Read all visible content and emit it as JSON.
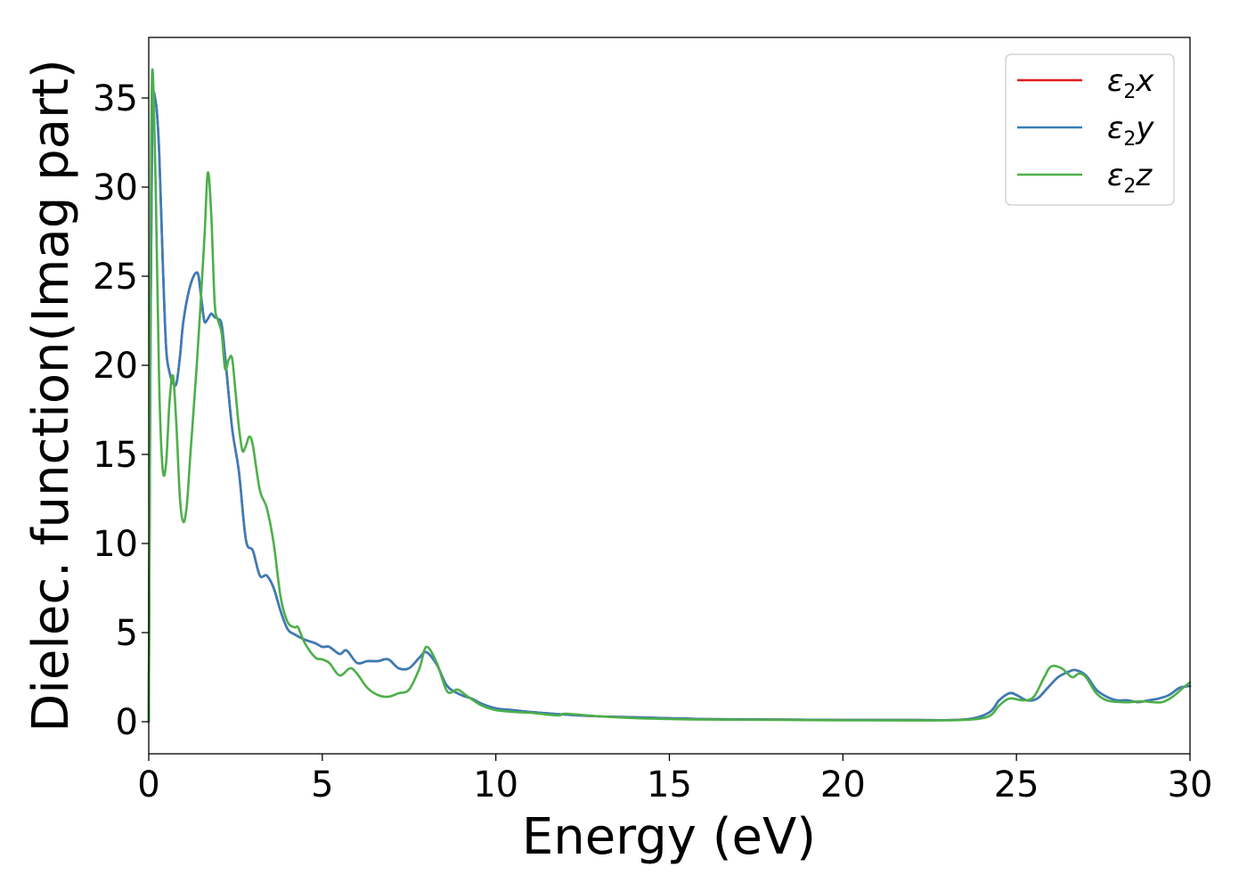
{
  "chart_data": {
    "type": "line",
    "title": "",
    "xlabel": "Energy (eV)",
    "ylabel": "Dielec. function(Imag part)",
    "xlim": [
      0,
      30
    ],
    "ylim": [
      -1.8,
      38.4
    ],
    "xticks": [
      "0",
      "5",
      "10",
      "15",
      "20",
      "25",
      "30"
    ],
    "yticks": [
      "0",
      "5",
      "10",
      "15",
      "20",
      "25",
      "30",
      "35"
    ],
    "grid": false,
    "legend_position": "top-right",
    "series": [
      {
        "name": "ε2x",
        "legend": {
          "symbol": "ε",
          "sub": "2",
          "axis": "x"
        },
        "color": "#e41a1c",
        "x": [
          0,
          0.05,
          0.1,
          0.2,
          0.3,
          0.4,
          0.5,
          0.6,
          0.7,
          0.8,
          0.9,
          1.0,
          1.2,
          1.4,
          1.5,
          1.6,
          1.7,
          1.8,
          1.9,
          2.0,
          2.1,
          2.2,
          2.4,
          2.6,
          2.8,
          3.0,
          3.2,
          3.4,
          3.6,
          3.8,
          4.0,
          4.2,
          4.5,
          4.8,
          5.0,
          5.2,
          5.5,
          5.7,
          6.0,
          6.3,
          6.6,
          6.9,
          7.2,
          7.5,
          7.8,
          8.0,
          8.3,
          8.6,
          9.0,
          9.3,
          9.6,
          10.0,
          10.5,
          11.0,
          12.0,
          13.0,
          14.0,
          15.0,
          16.0,
          18.0,
          20.0,
          22.0,
          23.5,
          24.2,
          24.5,
          24.8,
          25.0,
          25.3,
          25.6,
          25.9,
          26.2,
          26.5,
          26.7,
          27.0,
          27.3,
          27.6,
          27.9,
          28.2,
          28.5,
          28.8,
          29.1,
          29.4,
          29.7,
          30.0
        ],
        "y": [
          0,
          22,
          34,
          34.8,
          32,
          26,
          21,
          19.6,
          19.0,
          19.0,
          20.5,
          22.5,
          24.5,
          25.2,
          24.0,
          22.5,
          22.6,
          22.9,
          22.7,
          22.6,
          22.3,
          20.5,
          16.5,
          14.0,
          10.2,
          9.6,
          8.2,
          8.2,
          7.5,
          6.2,
          5.2,
          4.9,
          4.6,
          4.4,
          4.2,
          4.2,
          3.8,
          4.0,
          3.3,
          3.4,
          3.4,
          3.5,
          3.0,
          3.0,
          3.6,
          3.9,
          3.2,
          2.0,
          1.5,
          1.3,
          1.0,
          0.75,
          0.65,
          0.55,
          0.4,
          0.3,
          0.25,
          0.2,
          0.15,
          0.12,
          0.1,
          0.1,
          0.12,
          0.5,
          1.2,
          1.6,
          1.5,
          1.2,
          1.3,
          1.9,
          2.5,
          2.8,
          2.9,
          2.6,
          1.8,
          1.4,
          1.2,
          1.2,
          1.1,
          1.2,
          1.3,
          1.5,
          1.9,
          2.0
        ]
      },
      {
        "name": "ε2y",
        "legend": {
          "symbol": "ε",
          "sub": "2",
          "axis": "y"
        },
        "color": "#377eb8",
        "x": [
          0,
          0.05,
          0.1,
          0.2,
          0.3,
          0.4,
          0.5,
          0.6,
          0.7,
          0.8,
          0.9,
          1.0,
          1.2,
          1.4,
          1.5,
          1.6,
          1.7,
          1.8,
          1.9,
          2.0,
          2.1,
          2.2,
          2.4,
          2.6,
          2.8,
          3.0,
          3.2,
          3.4,
          3.6,
          3.8,
          4.0,
          4.2,
          4.5,
          4.8,
          5.0,
          5.2,
          5.5,
          5.7,
          6.0,
          6.3,
          6.6,
          6.9,
          7.2,
          7.5,
          7.8,
          8.0,
          8.3,
          8.6,
          9.0,
          9.3,
          9.6,
          10.0,
          10.5,
          11.0,
          12.0,
          13.0,
          14.0,
          15.0,
          16.0,
          18.0,
          20.0,
          22.0,
          23.5,
          24.2,
          24.5,
          24.8,
          25.0,
          25.3,
          25.6,
          25.9,
          26.2,
          26.5,
          26.7,
          27.0,
          27.3,
          27.6,
          27.9,
          28.2,
          28.5,
          28.8,
          29.1,
          29.4,
          29.7,
          30.0
        ],
        "y": [
          0,
          22,
          34,
          34.8,
          32,
          26,
          21,
          19.6,
          19.0,
          19.0,
          20.5,
          22.5,
          24.5,
          25.2,
          24.0,
          22.5,
          22.6,
          22.9,
          22.7,
          22.6,
          22.3,
          20.5,
          16.5,
          14.0,
          10.2,
          9.6,
          8.2,
          8.2,
          7.5,
          6.2,
          5.2,
          4.9,
          4.6,
          4.4,
          4.2,
          4.2,
          3.8,
          4.0,
          3.3,
          3.4,
          3.4,
          3.5,
          3.0,
          3.0,
          3.6,
          3.9,
          3.2,
          2.0,
          1.5,
          1.3,
          1.0,
          0.75,
          0.65,
          0.55,
          0.4,
          0.3,
          0.25,
          0.2,
          0.15,
          0.12,
          0.1,
          0.1,
          0.12,
          0.5,
          1.2,
          1.6,
          1.5,
          1.2,
          1.3,
          1.9,
          2.5,
          2.8,
          2.9,
          2.6,
          1.8,
          1.4,
          1.2,
          1.2,
          1.1,
          1.2,
          1.3,
          1.5,
          1.9,
          2.0
        ]
      },
      {
        "name": "ε2z",
        "legend": {
          "symbol": "ε",
          "sub": "2",
          "axis": "z"
        },
        "color": "#4daf4a",
        "x": [
          0,
          0.05,
          0.1,
          0.2,
          0.3,
          0.4,
          0.5,
          0.6,
          0.7,
          0.8,
          0.9,
          1.0,
          1.1,
          1.2,
          1.4,
          1.6,
          1.7,
          1.8,
          1.9,
          2.0,
          2.1,
          2.2,
          2.3,
          2.4,
          2.5,
          2.6,
          2.7,
          2.8,
          2.9,
          3.0,
          3.2,
          3.4,
          3.6,
          3.8,
          4.0,
          4.2,
          4.3,
          4.5,
          4.8,
          5.0,
          5.2,
          5.5,
          5.8,
          6.0,
          6.3,
          6.6,
          6.9,
          7.2,
          7.5,
          7.8,
          8.0,
          8.3,
          8.6,
          8.9,
          9.2,
          9.6,
          10.0,
          10.5,
          11.0,
          11.8,
          12.0,
          13.0,
          14.0,
          15.0,
          16.0,
          18.0,
          20.0,
          22.0,
          23.5,
          24.2,
          24.5,
          24.8,
          25.2,
          25.5,
          25.8,
          26.0,
          26.3,
          26.6,
          26.8,
          27.0,
          27.3,
          27.6,
          28.0,
          28.3,
          28.6,
          28.9,
          29.2,
          29.5,
          29.8,
          30.0
        ],
        "y": [
          0,
          25,
          36.5,
          30,
          19,
          14.2,
          14.5,
          18.0,
          19.4,
          16.5,
          12.5,
          11.2,
          12.2,
          15.0,
          20.5,
          27.0,
          30.8,
          28.5,
          23.5,
          22.5,
          21.8,
          19.8,
          20.3,
          20.4,
          18.5,
          16.5,
          15.2,
          15.5,
          16.0,
          15.5,
          13.0,
          12.0,
          10.0,
          7.0,
          5.6,
          5.3,
          5.3,
          4.4,
          3.6,
          3.5,
          3.3,
          2.6,
          3.0,
          2.7,
          1.9,
          1.5,
          1.4,
          1.6,
          1.8,
          3.0,
          4.2,
          3.3,
          1.7,
          1.8,
          1.4,
          0.9,
          0.65,
          0.55,
          0.5,
          0.35,
          0.45,
          0.3,
          0.2,
          0.15,
          0.12,
          0.1,
          0.08,
          0.07,
          0.1,
          0.3,
          0.9,
          1.3,
          1.2,
          1.4,
          2.5,
          3.1,
          3.0,
          2.5,
          2.7,
          2.5,
          1.6,
          1.2,
          1.1,
          1.1,
          1.15,
          1.1,
          1.1,
          1.4,
          1.9,
          2.2
        ]
      }
    ]
  }
}
